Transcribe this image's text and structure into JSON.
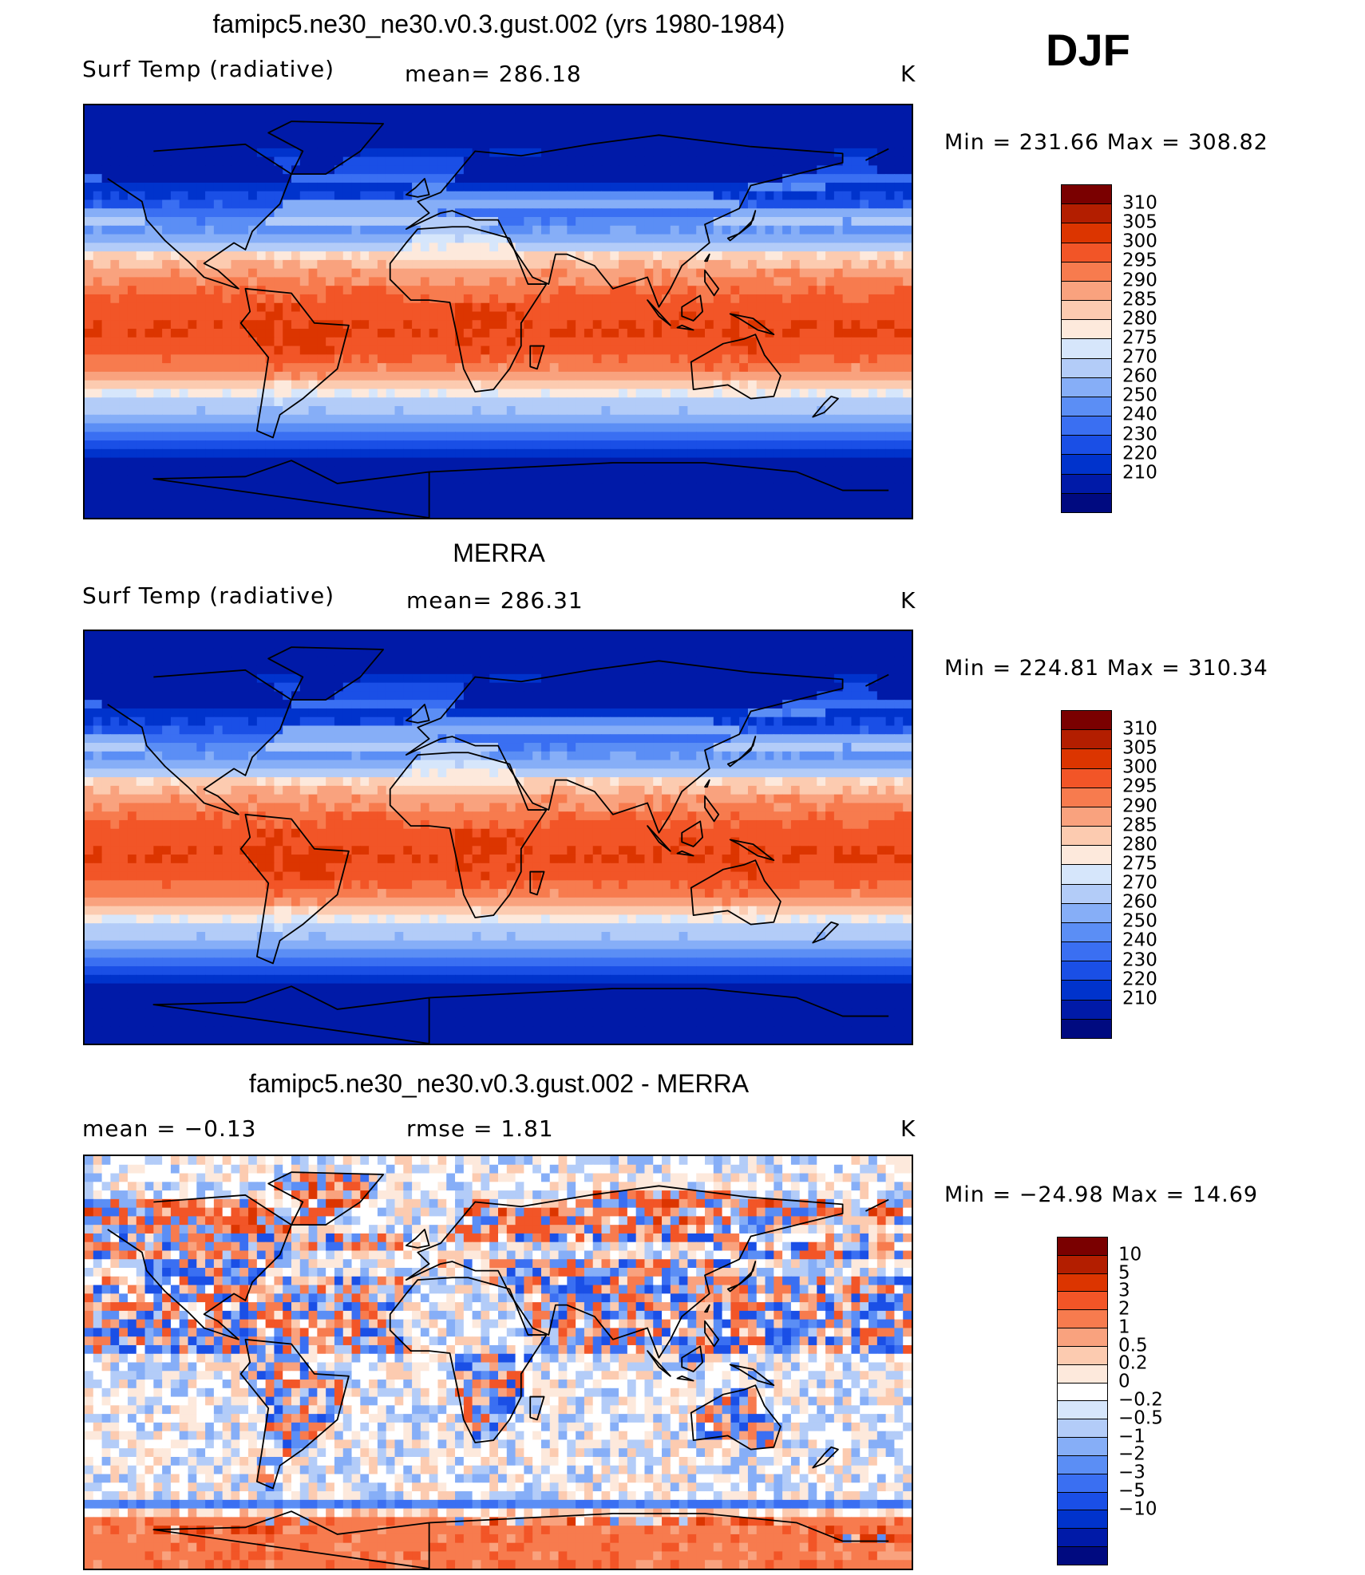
{
  "season": "DJF",
  "colormap_temperature": [
    "#000a80",
    "#001aa8",
    "#0033cc",
    "#1a4fe6",
    "#3a6ff2",
    "#5b8ef5",
    "#86aef7",
    "#b3ccf8",
    "#d6e6fb",
    "#fde9dc",
    "#fccbb0",
    "#f9a27e",
    "#f77b4e",
    "#f25527",
    "#dc3500",
    "#b31e00",
    "#7a0000"
  ],
  "colormap_difference": [
    "#000a80",
    "#001aa8",
    "#0033cc",
    "#1a4fe6",
    "#3a6ff2",
    "#5b8ef5",
    "#86aef7",
    "#b3ccf8",
    "#d6e6fb",
    "#ffffff",
    "#fde9dc",
    "#fccbb0",
    "#f9a27e",
    "#f77b4e",
    "#f25527",
    "#dc3500",
    "#b31e00",
    "#7a0000"
  ],
  "chart_data": [
    {
      "type": "heatmap",
      "title": "famipc5.ne30_ne30.v0.3.gust.002 (yrs 1980-1984)",
      "variable": "Surf Temp (radiative)",
      "mean_label": "mean=  286.18",
      "units": "K",
      "min_max": "Min  =  231.66  Max  =  308.82",
      "min": 231.66,
      "max": 308.82,
      "mean": 286.18,
      "colorbar_levels": [
        "310",
        "305",
        "300",
        "295",
        "290",
        "285",
        "280",
        "275",
        "270",
        "260",
        "250",
        "240",
        "230",
        "220",
        "210"
      ]
    },
    {
      "type": "heatmap",
      "title": "MERRA",
      "variable": "Surf Temp (radiative)",
      "mean_label": "mean=  286.31",
      "units": "K",
      "min_max": "Min  =  224.81  Max  =  310.34",
      "min": 224.81,
      "max": 310.34,
      "mean": 286.31,
      "colorbar_levels": [
        "310",
        "305",
        "300",
        "295",
        "290",
        "285",
        "280",
        "275",
        "270",
        "260",
        "250",
        "240",
        "230",
        "220",
        "210"
      ]
    },
    {
      "type": "heatmap",
      "title": "famipc5.ne30_ne30.v0.3.gust.002 - MERRA",
      "mean_label": "mean =    −0.13",
      "rmse_label": "rmse =     1.81",
      "units": "K",
      "min_max": "Min  =  −24.98  Max  =    14.69",
      "min": -24.98,
      "max": 14.69,
      "mean": -0.13,
      "rmse": 1.81,
      "colorbar_levels": [
        "10",
        "5",
        "3",
        "2",
        "1",
        "0.5",
        "0.2",
        "0",
        "−0.2",
        "−0.5",
        "−1",
        "−2",
        "−3",
        "−5",
        "−10"
      ]
    }
  ]
}
